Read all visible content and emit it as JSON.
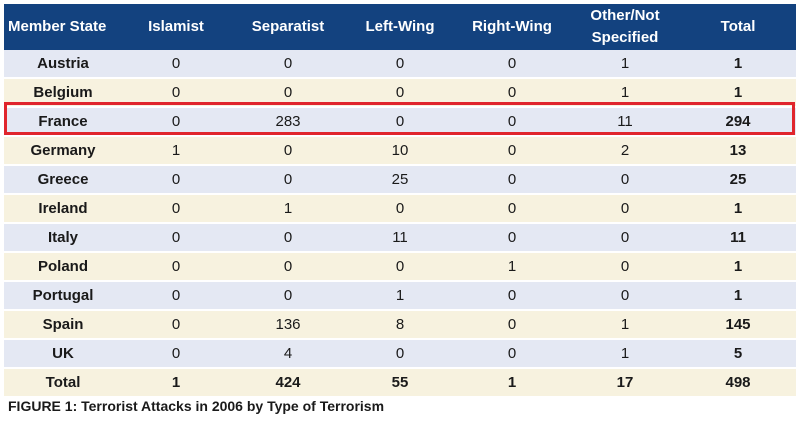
{
  "table": {
    "headers": [
      "Member State",
      "Islamist",
      "Separatist",
      "Left-Wing",
      "Right-Wing",
      "Other/Not Specified",
      "Total"
    ],
    "rows": [
      [
        "Austria",
        "0",
        "0",
        "0",
        "0",
        "1",
        "1"
      ],
      [
        "Belgium",
        "0",
        "0",
        "0",
        "0",
        "1",
        "1"
      ],
      [
        "France",
        "0",
        "283",
        "0",
        "0",
        "11",
        "294"
      ],
      [
        "Germany",
        "1",
        "0",
        "10",
        "0",
        "2",
        "13"
      ],
      [
        "Greece",
        "0",
        "0",
        "25",
        "0",
        "0",
        "25"
      ],
      [
        "Ireland",
        "0",
        "1",
        "0",
        "0",
        "0",
        "1"
      ],
      [
        "Italy",
        "0",
        "0",
        "11",
        "0",
        "0",
        "11"
      ],
      [
        "Poland",
        "0",
        "0",
        "0",
        "1",
        "0",
        "1"
      ],
      [
        "Portugal",
        "0",
        "0",
        "1",
        "0",
        "0",
        "1"
      ],
      [
        "Spain",
        "0",
        "136",
        "8",
        "0",
        "1",
        "145"
      ],
      [
        "UK",
        "0",
        "4",
        "0",
        "0",
        "1",
        "5"
      ]
    ],
    "total_row": [
      "Total",
      "1",
      "424",
      "55",
      "1",
      "17",
      "498"
    ],
    "highlighted_row": "France"
  },
  "caption": "FIGURE 1: Terrorist Attacks in 2006 by Type of Terrorism",
  "colors": {
    "header_bg": "#13427f",
    "row_blue": "#e4e8f3",
    "row_cream": "#f7f2df",
    "highlight_border": "#e0252c"
  }
}
